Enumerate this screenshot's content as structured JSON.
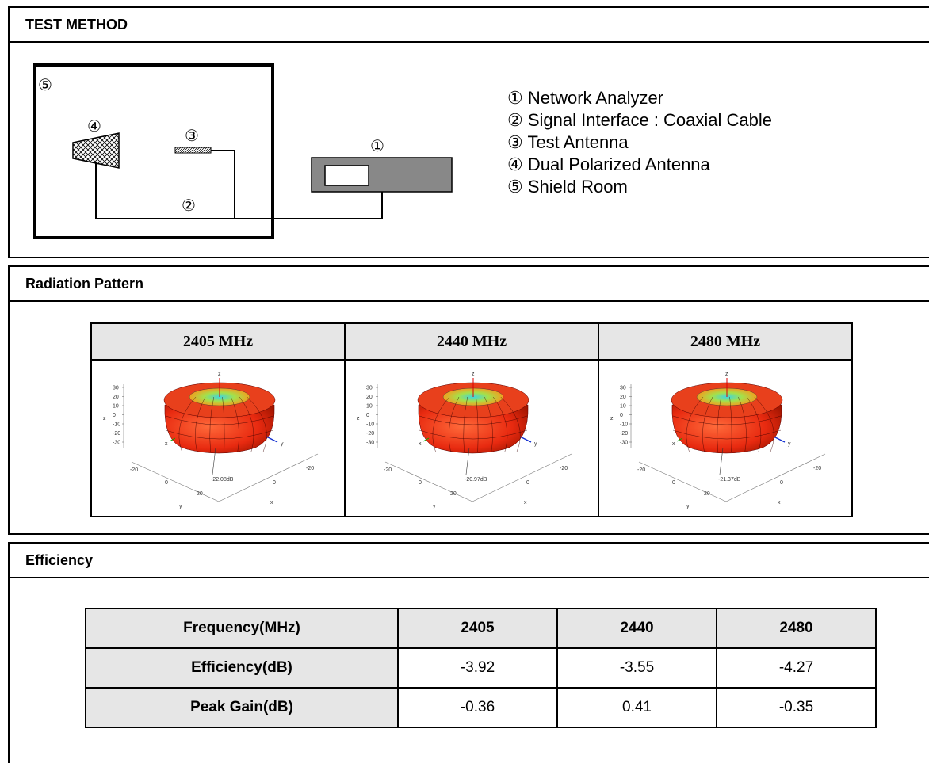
{
  "test_method": {
    "heading": "TEST METHOD",
    "markers": {
      "m1": "①",
      "m2": "②",
      "m3": "③",
      "m4": "④",
      "m5": "⑤"
    },
    "legend": [
      "① Network Analyzer",
      "② Signal Interface : Coaxial Cable",
      "③ Test Antenna",
      "④ Dual Polarized Antenna",
      "⑤ Shield Room"
    ]
  },
  "radiation_pattern": {
    "heading": "Radiation Pattern",
    "columns": [
      {
        "label": "2405 MHz",
        "min_label": "-22.08dB"
      },
      {
        "label": "2440 MHz",
        "min_label": "-20.97dB"
      },
      {
        "label": "2480 MHz",
        "min_label": "-21.37dB"
      }
    ],
    "axis_ticks_z": [
      "30",
      "20",
      "10",
      "0",
      "-10",
      "-20",
      "-30"
    ],
    "axis_ticks_xy": [
      "-20",
      "0",
      "20",
      "0",
      "-20"
    ],
    "axis_letters": {
      "z": "z",
      "x": "x",
      "y": "y"
    }
  },
  "efficiency": {
    "heading": "Efficiency",
    "header_row": [
      "Frequency(MHz)",
      "2405",
      "2440",
      "2480"
    ],
    "rows": [
      [
        "Efficiency(dB)",
        "-3.92",
        "-3.55",
        "-4.27"
      ],
      [
        "Peak Gain(dB)",
        "-0.36",
        "0.41",
        "-0.35"
      ]
    ]
  }
}
